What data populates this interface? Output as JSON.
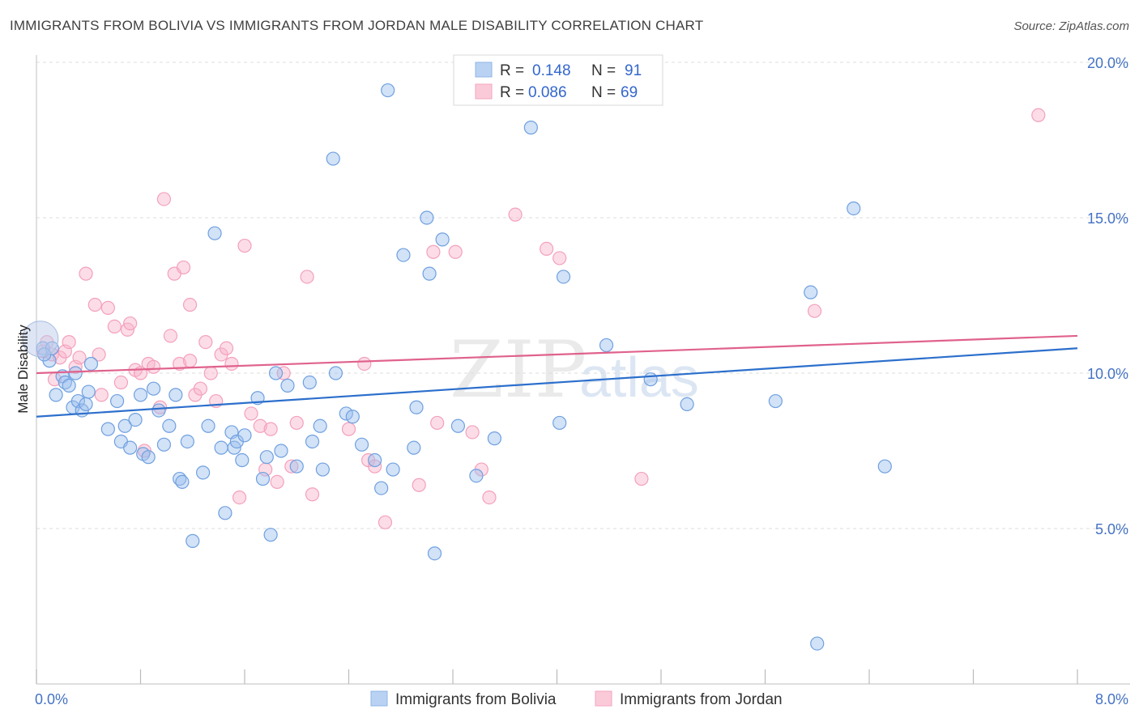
{
  "header": {
    "title": "IMMIGRANTS FROM BOLIVIA VS IMMIGRANTS FROM JORDAN MALE DISABILITY CORRELATION CHART",
    "source": "Source: ZipAtlas.com"
  },
  "watermark": {
    "part1": "ZIP",
    "part2": "atlas"
  },
  "legend": {
    "r_label": "R =",
    "n_label": "N =",
    "rows": [
      {
        "r": "0.148",
        "n": "91"
      },
      {
        "r": "0.086",
        "n": "69"
      }
    ]
  },
  "chart_data": {
    "type": "scatter",
    "title": "IMMIGRANTS FROM BOLIVIA VS IMMIGRANTS FROM JORDAN MALE DISABILITY CORRELATION CHART",
    "xlabel": "",
    "ylabel": "Male Disability",
    "xlim": [
      0,
      8
    ],
    "ylim": [
      0,
      20.5
    ],
    "x_tick_labels": [
      "0.0%",
      "8.0%"
    ],
    "y_ticks": [
      5,
      10,
      15,
      20
    ],
    "y_tick_labels": [
      "5.0%",
      "10.0%",
      "15.0%",
      "20.0%"
    ],
    "grid": true,
    "legend_position": "top-center",
    "colors": {
      "bolivia": "#6fa0e0",
      "jordan": "#f4a0bb",
      "bolivia_line": "#2c6fcc",
      "jordan_line": "#e0628c"
    },
    "series": [
      {
        "name": "Immigrants from Bolivia",
        "trend": {
          "x": [
            0,
            8
          ],
          "y": [
            8.6,
            10.8
          ]
        },
        "points": [
          [
            0.05,
            10.8
          ],
          [
            0.1,
            10.4
          ],
          [
            0.12,
            10.8
          ],
          [
            0.15,
            9.3
          ],
          [
            0.2,
            9.9
          ],
          [
            0.22,
            9.7
          ],
          [
            0.25,
            9.6
          ],
          [
            0.28,
            8.9
          ],
          [
            0.3,
            10
          ],
          [
            0.32,
            9.1
          ],
          [
            0.35,
            8.8
          ],
          [
            0.38,
            9.0
          ],
          [
            0.4,
            9.4
          ],
          [
            0.42,
            10.3
          ],
          [
            0.55,
            8.2
          ],
          [
            0.62,
            9.1
          ],
          [
            0.65,
            7.8
          ],
          [
            0.68,
            8.3
          ],
          [
            0.72,
            7.6
          ],
          [
            0.76,
            8.5
          ],
          [
            0.8,
            9.3
          ],
          [
            0.82,
            7.4
          ],
          [
            0.86,
            7.3
          ],
          [
            0.9,
            9.5
          ],
          [
            0.94,
            8.8
          ],
          [
            0.98,
            7.7
          ],
          [
            1.02,
            8.3
          ],
          [
            1.07,
            9.3
          ],
          [
            1.1,
            6.6
          ],
          [
            1.12,
            6.5
          ],
          [
            1.16,
            7.8
          ],
          [
            1.2,
            4.6
          ],
          [
            1.28,
            6.8
          ],
          [
            1.32,
            8.3
          ],
          [
            1.37,
            14.5
          ],
          [
            1.42,
            7.6
          ],
          [
            1.45,
            5.5
          ],
          [
            1.5,
            8.1
          ],
          [
            1.52,
            7.6
          ],
          [
            1.54,
            7.8
          ],
          [
            1.58,
            7.2
          ],
          [
            1.6,
            8.0
          ],
          [
            1.7,
            9.2
          ],
          [
            1.74,
            6.6
          ],
          [
            1.77,
            7.3
          ],
          [
            1.8,
            4.8
          ],
          [
            1.84,
            10.0
          ],
          [
            1.88,
            7.5
          ],
          [
            1.93,
            9.6
          ],
          [
            2.0,
            7.0
          ],
          [
            2.1,
            9.7
          ],
          [
            2.12,
            7.8
          ],
          [
            2.18,
            8.3
          ],
          [
            2.2,
            6.9
          ],
          [
            2.28,
            16.9
          ],
          [
            2.3,
            10.0
          ],
          [
            2.38,
            8.7
          ],
          [
            2.43,
            8.6
          ],
          [
            2.5,
            7.7
          ],
          [
            2.6,
            7.2
          ],
          [
            2.65,
            6.3
          ],
          [
            2.7,
            19.1
          ],
          [
            2.74,
            6.9
          ],
          [
            2.82,
            13.8
          ],
          [
            2.9,
            7.6
          ],
          [
            2.92,
            8.9
          ],
          [
            3.0,
            15.0
          ],
          [
            3.02,
            13.2
          ],
          [
            3.06,
            4.2
          ],
          [
            3.12,
            14.3
          ],
          [
            3.24,
            8.3
          ],
          [
            3.38,
            6.7
          ],
          [
            3.52,
            7.9
          ],
          [
            3.8,
            17.9
          ],
          [
            4.02,
            8.4
          ],
          [
            4.05,
            13.1
          ],
          [
            4.38,
            10.9
          ],
          [
            4.72,
            9.8
          ],
          [
            5.0,
            9.0
          ],
          [
            5.68,
            9.1
          ],
          [
            5.95,
            12.6
          ],
          [
            6.28,
            15.3
          ],
          [
            6.52,
            7.0
          ],
          [
            6.0,
            1.3
          ],
          [
            0.06,
            10.6
          ]
        ]
      },
      {
        "name": "Immigrants from Jordan",
        "trend": {
          "x": [
            0,
            8
          ],
          "y": [
            10.0,
            11.2
          ]
        },
        "points": [
          [
            0.05,
            10.7
          ],
          [
            0.08,
            11.0
          ],
          [
            0.12,
            10.6
          ],
          [
            0.18,
            10.5
          ],
          [
            0.22,
            10.7
          ],
          [
            0.25,
            11.0
          ],
          [
            0.3,
            10.2
          ],
          [
            0.33,
            10.5
          ],
          [
            0.38,
            13.2
          ],
          [
            0.45,
            12.2
          ],
          [
            0.5,
            9.3
          ],
          [
            0.55,
            12.1
          ],
          [
            0.6,
            11.5
          ],
          [
            0.65,
            9.7
          ],
          [
            0.7,
            11.4
          ],
          [
            0.72,
            11.6
          ],
          [
            0.76,
            10.1
          ],
          [
            0.8,
            10.0
          ],
          [
            0.83,
            7.5
          ],
          [
            0.86,
            10.3
          ],
          [
            0.9,
            10.2
          ],
          [
            0.95,
            8.9
          ],
          [
            0.98,
            15.6
          ],
          [
            1.03,
            11.2
          ],
          [
            1.06,
            13.2
          ],
          [
            1.1,
            10.3
          ],
          [
            1.13,
            13.4
          ],
          [
            1.18,
            12.2
          ],
          [
            1.22,
            9.3
          ],
          [
            1.26,
            9.5
          ],
          [
            1.3,
            11.0
          ],
          [
            1.34,
            10.0
          ],
          [
            1.38,
            9.1
          ],
          [
            1.42,
            10.6
          ],
          [
            1.46,
            10.8
          ],
          [
            1.5,
            10.3
          ],
          [
            1.56,
            6.0
          ],
          [
            1.6,
            14.1
          ],
          [
            1.65,
            8.7
          ],
          [
            1.72,
            8.3
          ],
          [
            1.76,
            6.9
          ],
          [
            1.8,
            8.2
          ],
          [
            1.85,
            6.5
          ],
          [
            1.9,
            10.0
          ],
          [
            1.96,
            7.0
          ],
          [
            2.0,
            8.4
          ],
          [
            2.08,
            13.1
          ],
          [
            2.12,
            6.1
          ],
          [
            2.4,
            8.2
          ],
          [
            2.52,
            10.3
          ],
          [
            2.55,
            7.2
          ],
          [
            2.6,
            7.0
          ],
          [
            2.68,
            5.2
          ],
          [
            2.94,
            6.4
          ],
          [
            3.05,
            13.9
          ],
          [
            3.08,
            8.4
          ],
          [
            3.22,
            13.9
          ],
          [
            3.35,
            8.1
          ],
          [
            3.42,
            6.9
          ],
          [
            3.48,
            6.0
          ],
          [
            3.68,
            15.1
          ],
          [
            3.92,
            14.0
          ],
          [
            4.02,
            13.7
          ],
          [
            4.65,
            6.6
          ],
          [
            5.98,
            12.0
          ],
          [
            7.7,
            18.3
          ],
          [
            0.14,
            9.8
          ],
          [
            0.48,
            10.6
          ],
          [
            1.18,
            10.4
          ]
        ]
      }
    ]
  },
  "bottom_legend": {
    "items": [
      "Immigrants from Bolivia",
      "Immigrants from Jordan"
    ]
  }
}
